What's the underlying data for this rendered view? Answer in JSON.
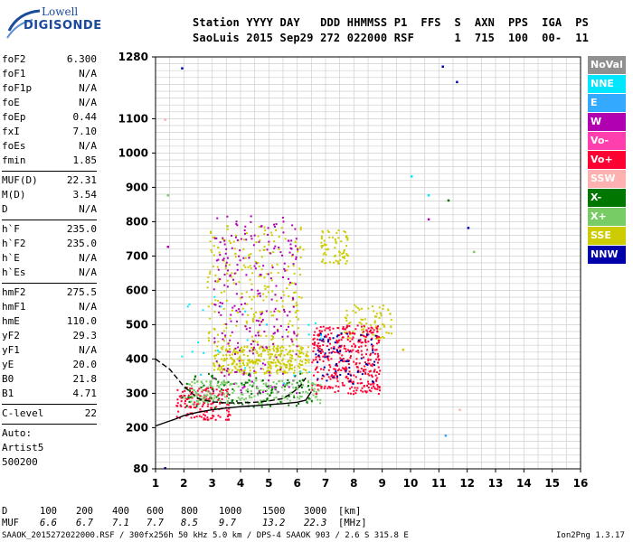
{
  "logo": {
    "line1": "Lowell",
    "line2": "DIGISONDE"
  },
  "header": {
    "line1": "Station YYYY DAY   DDD HHMMSS P1  FFS  S  AXN  PPS  IGA  PS",
    "line2": "SaoLuis 2015 Sep29 272 022000 RSF      1  715  100  00-  11"
  },
  "params": [
    {
      "type": "row",
      "name": "foF2",
      "value": "6.300"
    },
    {
      "type": "row",
      "name": "foF1",
      "value": "N/A"
    },
    {
      "type": "row",
      "name": "foF1p",
      "value": "N/A"
    },
    {
      "type": "row",
      "name": "foE",
      "value": "N/A"
    },
    {
      "type": "row",
      "name": "foEp",
      "value": "0.44"
    },
    {
      "type": "row",
      "name": "fxI",
      "value": "7.10"
    },
    {
      "type": "row",
      "name": "foEs",
      "value": "N/A"
    },
    {
      "type": "row",
      "name": "fmin",
      "value": "1.85"
    },
    {
      "type": "sep"
    },
    {
      "type": "row",
      "name": "MUF(D)",
      "value": "22.31"
    },
    {
      "type": "row",
      "name": "M(D)",
      "value": "3.54"
    },
    {
      "type": "row",
      "name": "D",
      "value": "N/A"
    },
    {
      "type": "sep"
    },
    {
      "type": "row",
      "name": "h`F",
      "value": "235.0"
    },
    {
      "type": "row",
      "name": "h`F2",
      "value": "235.0"
    },
    {
      "type": "row",
      "name": "h`E",
      "value": "N/A"
    },
    {
      "type": "row",
      "name": "h`Es",
      "value": "N/A"
    },
    {
      "type": "sep"
    },
    {
      "type": "row",
      "name": "hmF2",
      "value": "275.5"
    },
    {
      "type": "row",
      "name": "hmF1",
      "value": "N/A"
    },
    {
      "type": "row",
      "name": "hmE",
      "value": "110.0"
    },
    {
      "type": "row",
      "name": "yF2",
      "value": "29.3"
    },
    {
      "type": "row",
      "name": "yF1",
      "value": "N/A"
    },
    {
      "type": "row",
      "name": "yE",
      "value": "20.0"
    },
    {
      "type": "row",
      "name": "B0",
      "value": "21.8"
    },
    {
      "type": "row",
      "name": "B1",
      "value": "4.71"
    },
    {
      "type": "sep"
    },
    {
      "type": "row",
      "name": "C-level",
      "value": "22"
    },
    {
      "type": "sep"
    },
    {
      "type": "text",
      "name": "Auto:"
    },
    {
      "type": "text",
      "name": "Artist5"
    },
    {
      "type": "text",
      "name": "500200"
    }
  ],
  "legend": [
    {
      "label": "NoVal",
      "color": "#909090"
    },
    {
      "label": "NNE",
      "color": "#00e6ff"
    },
    {
      "label": "E",
      "color": "#33aaff"
    },
    {
      "label": "W",
      "color": "#b000b0"
    },
    {
      "label": "Vo-",
      "color": "#ff3fae"
    },
    {
      "label": "Vo+",
      "color": "#ff0033"
    },
    {
      "label": "SSW",
      "color": "#ffb0b0"
    },
    {
      "label": "X-",
      "color": "#007700"
    },
    {
      "label": "X+",
      "color": "#77cc66"
    },
    {
      "label": "SSE",
      "color": "#cccc00"
    },
    {
      "label": "NNW",
      "color": "#0000aa"
    }
  ],
  "chart_data": {
    "type": "scatter",
    "xlabel": "",
    "ylabel": "",
    "xlim": [
      1,
      16
    ],
    "ylim": [
      80,
      1280
    ],
    "x_ticks": [
      "1",
      "2",
      "3",
      "4",
      "5",
      "6",
      "7",
      "8",
      "9",
      "10",
      "11",
      "12",
      "13",
      "14",
      "15",
      "16"
    ],
    "y_ticks": [
      "80",
      "200",
      "300",
      "400",
      "500",
      "600",
      "700",
      "800",
      "900",
      "1000",
      "1100",
      "1280"
    ],
    "grid": true,
    "clusters": [
      {
        "name": "SSE",
        "color": "#cccc00",
        "x_range": [
          3.0,
          6.4
        ],
        "y_range": [
          360,
          440
        ],
        "count": 320
      },
      {
        "name": "SSE",
        "color": "#cccc00",
        "x_range": [
          2.8,
          6.2
        ],
        "y_range": [
          440,
          800
        ],
        "count": 240
      },
      {
        "name": "SSE",
        "color": "#cccc00",
        "x_range": [
          6.8,
          7.8
        ],
        "y_range": [
          680,
          780
        ],
        "count": 70
      },
      {
        "name": "SSE",
        "color": "#cccc00",
        "x_range": [
          7.5,
          9.3
        ],
        "y_range": [
          460,
          560
        ],
        "count": 80
      },
      {
        "name": "W",
        "color": "#b000b0",
        "x_range": [
          3.0,
          6.0
        ],
        "y_range": [
          300,
          820
        ],
        "count": 260
      },
      {
        "name": "Vo+",
        "color": "#ff0033",
        "x_range": [
          6.5,
          8.9
        ],
        "y_range": [
          300,
          500
        ],
        "count": 380
      },
      {
        "name": "Vo+",
        "color": "#ff0033",
        "x_range": [
          1.7,
          3.6
        ],
        "y_range": [
          225,
          320
        ],
        "count": 160
      },
      {
        "name": "X+",
        "color": "#77cc66",
        "x_range": [
          2.0,
          6.8
        ],
        "y_range": [
          270,
          340
        ],
        "count": 220
      },
      {
        "name": "X-",
        "color": "#007700",
        "x_range": [
          1.8,
          6.5
        ],
        "y_range": [
          260,
          360
        ],
        "count": 90
      },
      {
        "name": "NNW",
        "color": "#0000aa",
        "x_range": [
          6.6,
          8.8
        ],
        "y_range": [
          330,
          480
        ],
        "count": 70
      },
      {
        "name": "NNE",
        "color": "#00e6ff",
        "x_range": [
          1.8,
          8.0
        ],
        "y_range": [
          300,
          600
        ],
        "count": 25
      }
    ],
    "scattered_points": [
      {
        "x": 1.9,
        "y": 1250,
        "color": "#0000aa"
      },
      {
        "x": 11.1,
        "y": 1255,
        "color": "#0000aa"
      },
      {
        "x": 11.6,
        "y": 1210,
        "color": "#0000aa"
      },
      {
        "x": 10.0,
        "y": 935,
        "color": "#00e6ff"
      },
      {
        "x": 10.6,
        "y": 880,
        "color": "#00e6ff"
      },
      {
        "x": 11.3,
        "y": 865,
        "color": "#007700"
      },
      {
        "x": 10.6,
        "y": 810,
        "color": "#b000b0"
      },
      {
        "x": 12.0,
        "y": 785,
        "color": "#0000aa"
      },
      {
        "x": 12.2,
        "y": 715,
        "color": "#77cc66"
      },
      {
        "x": 1.4,
        "y": 730,
        "color": "#b000b0"
      },
      {
        "x": 1.4,
        "y": 880,
        "color": "#77cc66"
      },
      {
        "x": 1.3,
        "y": 1100,
        "color": "#ffb0b0"
      },
      {
        "x": 11.7,
        "y": 255,
        "color": "#ffb0b0"
      },
      {
        "x": 11.2,
        "y": 180,
        "color": "#33aaff"
      },
      {
        "x": 1.3,
        "y": 85,
        "color": "#0000aa"
      },
      {
        "x": 9.7,
        "y": 430,
        "color": "#cccc00"
      }
    ],
    "trace_lower": {
      "x": [
        1,
        1.7,
        2,
        2.5,
        3,
        3.5,
        4,
        4.5,
        5,
        5.5,
        6,
        6.3,
        6.5
      ],
      "y": [
        205,
        225,
        235,
        245,
        252,
        257,
        261,
        264,
        267,
        270,
        274,
        280,
        305
      ]
    },
    "trace_upper": {
      "x": [
        1,
        1.5,
        2,
        2.5,
        3,
        3.5,
        4,
        4.5,
        5,
        5.5,
        5.8,
        6.1,
        6.3
      ],
      "y": [
        400,
        370,
        320,
        285,
        275,
        272,
        272,
        274,
        278,
        285,
        300,
        320,
        345
      ]
    }
  },
  "footer": {
    "d_label": "D",
    "d_values": [
      "100",
      "200",
      "400",
      "600",
      "800",
      "1000",
      "1500",
      "3000"
    ],
    "d_unit": "[km]",
    "muf_label": "MUF",
    "muf_values": [
      "6.6",
      "6.7",
      "7.1",
      "7.7",
      "8.5",
      "9.7",
      "13.2",
      "22.3"
    ],
    "muf_unit": "[MHz]",
    "info": "SAAOK_2015272022000.RSF / 300fx256h 50 kHz 5.0 km / DPS-4 SAAOK 903 / 2.6 S 315.8 E",
    "version": "Ion2Png 1.3.17"
  }
}
